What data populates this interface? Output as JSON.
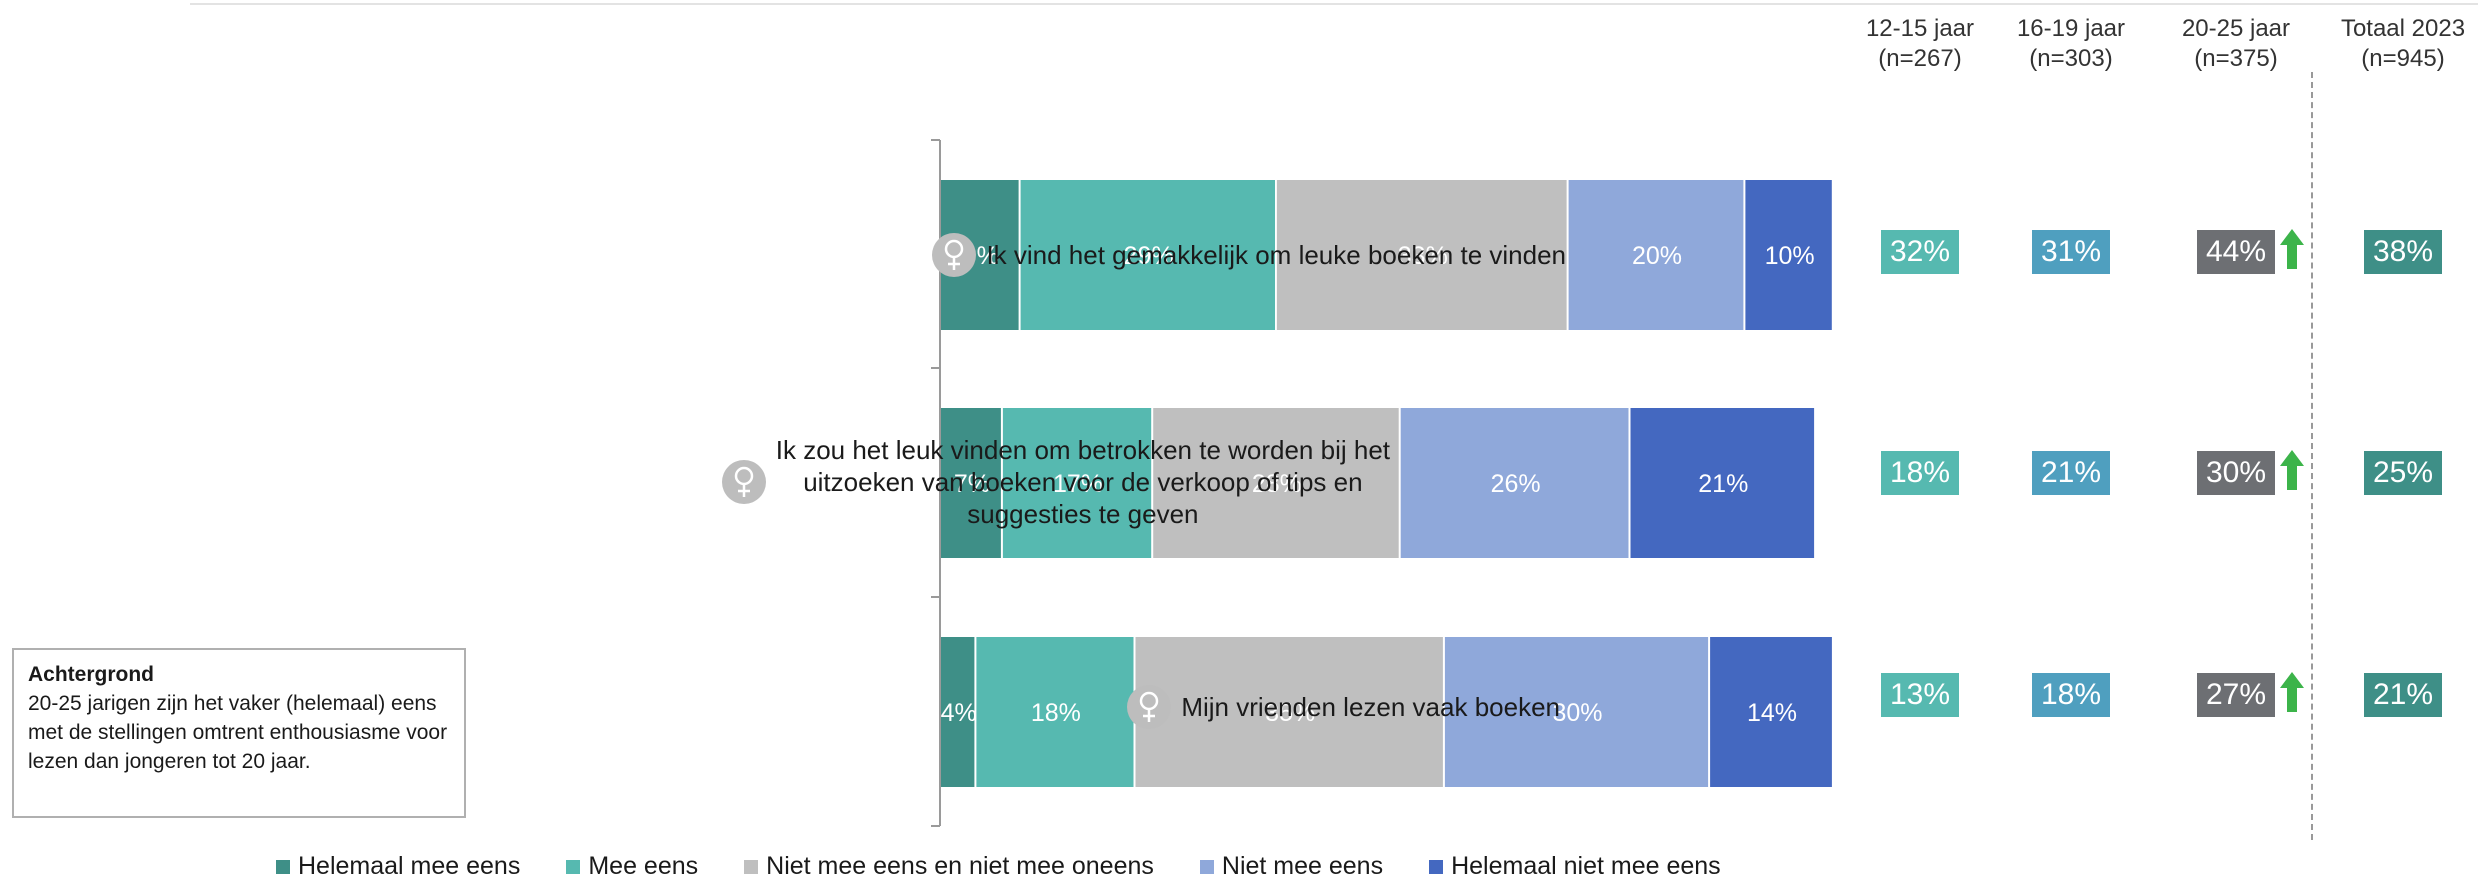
{
  "chart_data": {
    "type": "bar",
    "orientation": "horizontal",
    "stacked": true,
    "xlim": [
      0,
      100
    ],
    "categories": [
      "Ik vind het gemakkelijk om leuke boeken te vinden",
      "Ik zou het leuk vinden om betrokken te worden bij het uitzoeken van boeken voor de verkoop of tips en suggesties te geven",
      "Mijn vrienden lezen vaak boeken"
    ],
    "category_lines": [
      [
        "Ik vind het gemakkelijk om leuke boeken te vinden"
      ],
      [
        "Ik zou het leuk vinden om betrokken te worden bij het",
        "uitzoeken van boeken voor de verkoop of tips en",
        "suggesties te geven"
      ],
      [
        "Mijn vrienden lezen vaak boeken"
      ]
    ],
    "series": [
      {
        "name": "Helemaal mee eens",
        "color": "#3e8f87",
        "values": [
          9,
          7,
          4
        ],
        "labels": [
          "9%",
          "7%",
          "4%"
        ]
      },
      {
        "name": "Mee eens",
        "color": "#56b9b0",
        "values": [
          29,
          17,
          18
        ],
        "labels": [
          "29%",
          "17%",
          "18%"
        ]
      },
      {
        "name": "Niet mee eens en niet mee oneens",
        "color": "#bfbfbf",
        "values": [
          33,
          28,
          35
        ],
        "labels": [
          "33%",
          "28%",
          "35%"
        ]
      },
      {
        "name": "Niet mee eens",
        "color": "#8fa8da",
        "values": [
          20,
          26,
          30
        ],
        "labels": [
          "20%",
          "26%",
          "30%"
        ]
      },
      {
        "name": "Helemaal niet mee eens",
        "color": "#4468c0",
        "values": [
          10,
          21,
          14
        ],
        "labels": [
          "10%",
          "21%",
          "14%"
        ]
      }
    ],
    "legend_position": "bottom"
  },
  "columns": [
    {
      "title": "12-15 jaar",
      "n": "(n=267)",
      "color": "#56b9b0",
      "values": [
        "32%",
        "18%",
        "13%"
      ],
      "arrow": false
    },
    {
      "title": "16-19 jaar",
      "n": "(n=303)",
      "color": "#4f9fbf",
      "values": [
        "31%",
        "21%",
        "18%"
      ],
      "arrow": false
    },
    {
      "title": "20-25 jaar",
      "n": "(n=375)",
      "color": "#6d6f73",
      "values": [
        "44%",
        "30%",
        "27%"
      ],
      "arrow": true
    },
    {
      "title": "Totaal 2023",
      "n": "(n=945)",
      "color": "#3e8f87",
      "values": [
        "38%",
        "25%",
        "21%"
      ],
      "arrow": false
    }
  ],
  "arrow_color": "#3cb44a",
  "icons": [
    "female-icon",
    "female-icon",
    "female-icon"
  ],
  "note": {
    "title": "Achtergrond",
    "text": "20-25 jarigen zijn het vaker (helemaal) eens met de stellingen omtrent enthousiasme voor lezen dan jongeren tot 20 jaar."
  }
}
